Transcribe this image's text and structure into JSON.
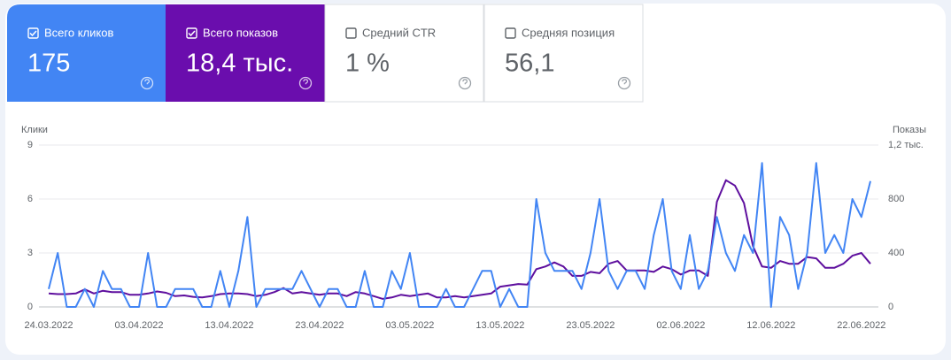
{
  "metrics": [
    {
      "checked": true,
      "value": "175"
    },
    {
      "checked": true,
      "value": "18,4 тыс."
    },
    {
      "checked": false,
      "label": "Средний CTR",
      "value": "1 %"
    },
    {
      "checked": false,
      "label": "Средняя позиция",
      "value": "56,1"
    }
  ],
  "chart_data": {
    "type": "line",
    "y_label": "Клики",
    "y2_label": "Показы",
    "categories": [
      "24.03.2022",
      null,
      null,
      null,
      null,
      null,
      null,
      null,
      null,
      null,
      "03.04.2022",
      null,
      null,
      null,
      null,
      null,
      null,
      null,
      null,
      null,
      "13.04.2022",
      null,
      null,
      null,
      null,
      null,
      null,
      null,
      null,
      null,
      "23.04.2022",
      null,
      null,
      null,
      null,
      null,
      null,
      null,
      null,
      null,
      "03.05.2022",
      null,
      null,
      null,
      null,
      null,
      null,
      null,
      null,
      null,
      "13.05.2022",
      null,
      null,
      null,
      null,
      null,
      null,
      null,
      null,
      null,
      "23.05.2022",
      null,
      null,
      null,
      null,
      null,
      null,
      null,
      null,
      null,
      "02.06.2022",
      null,
      null,
      null,
      null,
      null,
      null,
      null,
      null,
      null,
      "12.06.2022",
      null,
      null,
      null,
      null,
      null,
      null,
      null,
      null,
      null,
      "22.06.2022",
      null
    ],
    "series": [
      {
        "name": "Всего кликов",
        "color": "#4285f4",
        "tile_color": "#4285f4",
        "axis": "y",
        "values": [
          1,
          3,
          0,
          0,
          1,
          0,
          2,
          1,
          1,
          0,
          0,
          3,
          0,
          0,
          1,
          1,
          1,
          0,
          0,
          2,
          0,
          2,
          5,
          0,
          1,
          1,
          1,
          1,
          2,
          1,
          0,
          1,
          1,
          0,
          0,
          2,
          0,
          0,
          2,
          1,
          3,
          0,
          0,
          0,
          1,
          0,
          0,
          1,
          2,
          2,
          0,
          1,
          0,
          0,
          6,
          3,
          2,
          2,
          2,
          1,
          3,
          6,
          2,
          1,
          2,
          2,
          1,
          4,
          6,
          2,
          1,
          4,
          1,
          2,
          5,
          3,
          2,
          4,
          3,
          8,
          0,
          5,
          4,
          1,
          3,
          8,
          3,
          4,
          3,
          6,
          5,
          7
        ]
      },
      {
        "name": "Всего показов",
        "color": "#5e0f9e",
        "tile_color": "#6a0dad",
        "axis": "y2",
        "values": [
          100,
          95,
          95,
          100,
          130,
          100,
          120,
          110,
          110,
          90,
          90,
          100,
          115,
          105,
          80,
          85,
          75,
          70,
          80,
          95,
          100,
          100,
          95,
          80,
          90,
          110,
          140,
          100,
          110,
          100,
          90,
          100,
          100,
          80,
          110,
          100,
          80,
          60,
          70,
          90,
          80,
          90,
          100,
          70,
          70,
          80,
          70,
          80,
          90,
          100,
          150,
          160,
          170,
          165,
          280,
          300,
          330,
          300,
          230,
          230,
          260,
          250,
          320,
          340,
          270,
          270,
          270,
          260,
          300,
          280,
          240,
          270,
          270,
          230,
          780,
          940,
          900,
          770,
          450,
          300,
          290,
          340,
          320,
          320,
          370,
          360,
          290,
          290,
          320,
          380,
          400,
          320
        ]
      }
    ],
    "ylim": [
      0,
      9
    ],
    "yticks": [
      0,
      3,
      6,
      9
    ],
    "y2lim": [
      0,
      1200
    ],
    "y2ticks": [
      0,
      400,
      800,
      {
        "value": 1200,
        "label": "1,2 тыс."
      }
    ],
    "grid": true
  }
}
